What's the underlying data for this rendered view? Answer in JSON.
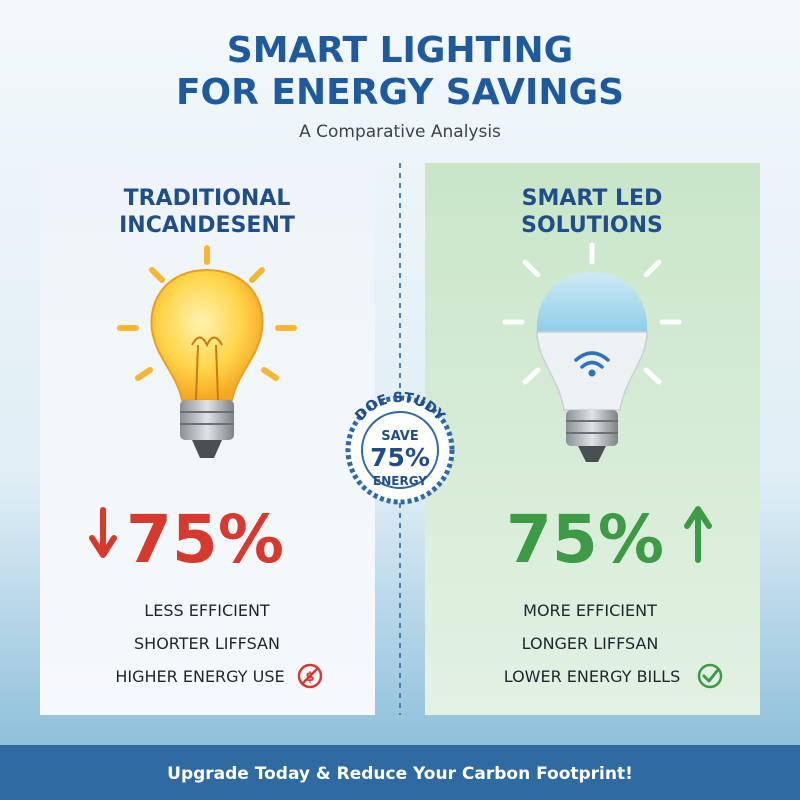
{
  "header": {
    "title_line1": "SMART LIGHTING",
    "title_line2": "FOR ENERGY SAVINGS",
    "subtitle": "A Comparative Analysis"
  },
  "panels": [
    {
      "title_line1": "TRADITIONAL",
      "title_line2": "INCANDESENT",
      "stat": "75%",
      "features": [
        "LESS EFFICIENT",
        "SHORTER LIFFSAN",
        "HIGHER ENERGY USE"
      ]
    },
    {
      "title_line1": "SMART LED",
      "title_line2": "SOLUTIONS",
      "stat": "75%",
      "features": [
        "MORE EFFICIENT",
        "LONGER LIFFSAN",
        "LOWER ENERGY BILLS"
      ]
    }
  ],
  "badge": {
    "arc_text": "DOE STUDY",
    "line1": "SAVE",
    "line2": "75%",
    "line3": "ENERGY"
  },
  "footer": {
    "text": "Upgrade Today & Reduce Your Carbon Footprint!"
  }
}
